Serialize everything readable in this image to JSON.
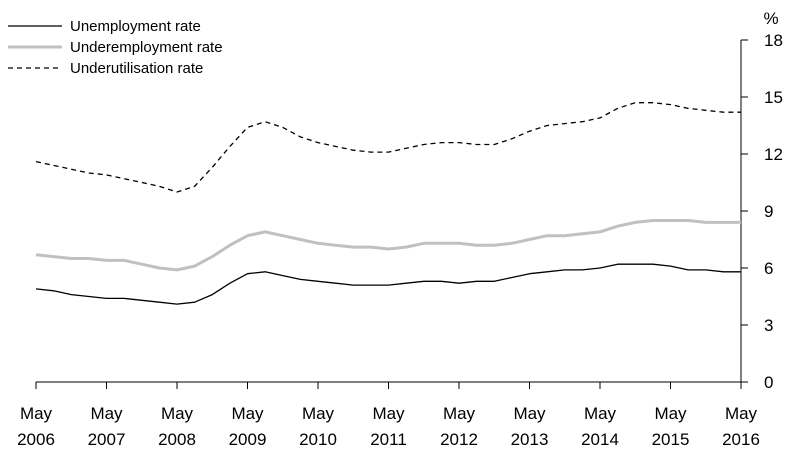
{
  "chart_data": {
    "type": "line",
    "y_unit": "%",
    "ylim": [
      0,
      18
    ],
    "yticks": [
      0,
      3,
      6,
      9,
      12,
      15,
      18
    ],
    "y_axis_side": "right",
    "xlim": [
      2006.0,
      2016.0
    ],
    "x_ticks": [
      {
        "month": "May",
        "year": "2006"
      },
      {
        "month": "May",
        "year": "2007"
      },
      {
        "month": "May",
        "year": "2008"
      },
      {
        "month": "May",
        "year": "2009"
      },
      {
        "month": "May",
        "year": "2010"
      },
      {
        "month": "May",
        "year": "2011"
      },
      {
        "month": "May",
        "year": "2012"
      },
      {
        "month": "May",
        "year": "2013"
      },
      {
        "month": "May",
        "year": "2014"
      },
      {
        "month": "May",
        "year": "2015"
      },
      {
        "month": "May",
        "year": "2016"
      }
    ],
    "grid": false,
    "legend_position": "top-left",
    "x": [
      2006.0,
      2006.25,
      2006.5,
      2006.75,
      2007.0,
      2007.25,
      2007.5,
      2007.75,
      2008.0,
      2008.25,
      2008.5,
      2008.75,
      2009.0,
      2009.25,
      2009.5,
      2009.75,
      2010.0,
      2010.25,
      2010.5,
      2010.75,
      2011.0,
      2011.25,
      2011.5,
      2011.75,
      2012.0,
      2012.25,
      2012.5,
      2012.75,
      2013.0,
      2013.25,
      2013.5,
      2013.75,
      2014.0,
      2014.25,
      2014.5,
      2014.75,
      2015.0,
      2015.25,
      2015.5,
      2015.75,
      2016.0
    ],
    "series": [
      {
        "name": "Unemployment rate",
        "color": "#000000",
        "style": "solid",
        "values": [
          4.9,
          4.8,
          4.6,
          4.5,
          4.4,
          4.4,
          4.3,
          4.2,
          4.1,
          4.2,
          4.6,
          5.2,
          5.7,
          5.8,
          5.6,
          5.4,
          5.3,
          5.2,
          5.1,
          5.1,
          5.1,
          5.2,
          5.3,
          5.3,
          5.2,
          5.3,
          5.3,
          5.5,
          5.7,
          5.8,
          5.9,
          5.9,
          6.0,
          6.2,
          6.2,
          6.2,
          6.1,
          5.9,
          5.9,
          5.8,
          5.8
        ]
      },
      {
        "name": "Underemployment rate",
        "color": "#c0c0c0",
        "style": "solid",
        "values": [
          6.7,
          6.6,
          6.5,
          6.5,
          6.4,
          6.4,
          6.2,
          6.0,
          5.9,
          6.1,
          6.6,
          7.2,
          7.7,
          7.9,
          7.7,
          7.5,
          7.3,
          7.2,
          7.1,
          7.1,
          7.0,
          7.1,
          7.3,
          7.3,
          7.3,
          7.2,
          7.2,
          7.3,
          7.5,
          7.7,
          7.7,
          7.8,
          7.9,
          8.2,
          8.4,
          8.5,
          8.5,
          8.5,
          8.4,
          8.4,
          8.4
        ]
      },
      {
        "name": "Underutilisation rate",
        "color": "#000000",
        "style": "dashed",
        "values": [
          11.6,
          11.4,
          11.2,
          11.0,
          10.9,
          10.7,
          10.5,
          10.3,
          10.0,
          10.3,
          11.3,
          12.4,
          13.4,
          13.7,
          13.4,
          12.9,
          12.6,
          12.4,
          12.2,
          12.1,
          12.1,
          12.3,
          12.5,
          12.6,
          12.6,
          12.5,
          12.5,
          12.8,
          13.2,
          13.5,
          13.6,
          13.7,
          13.9,
          14.4,
          14.7,
          14.7,
          14.6,
          14.4,
          14.3,
          14.2,
          14.2
        ]
      }
    ]
  }
}
